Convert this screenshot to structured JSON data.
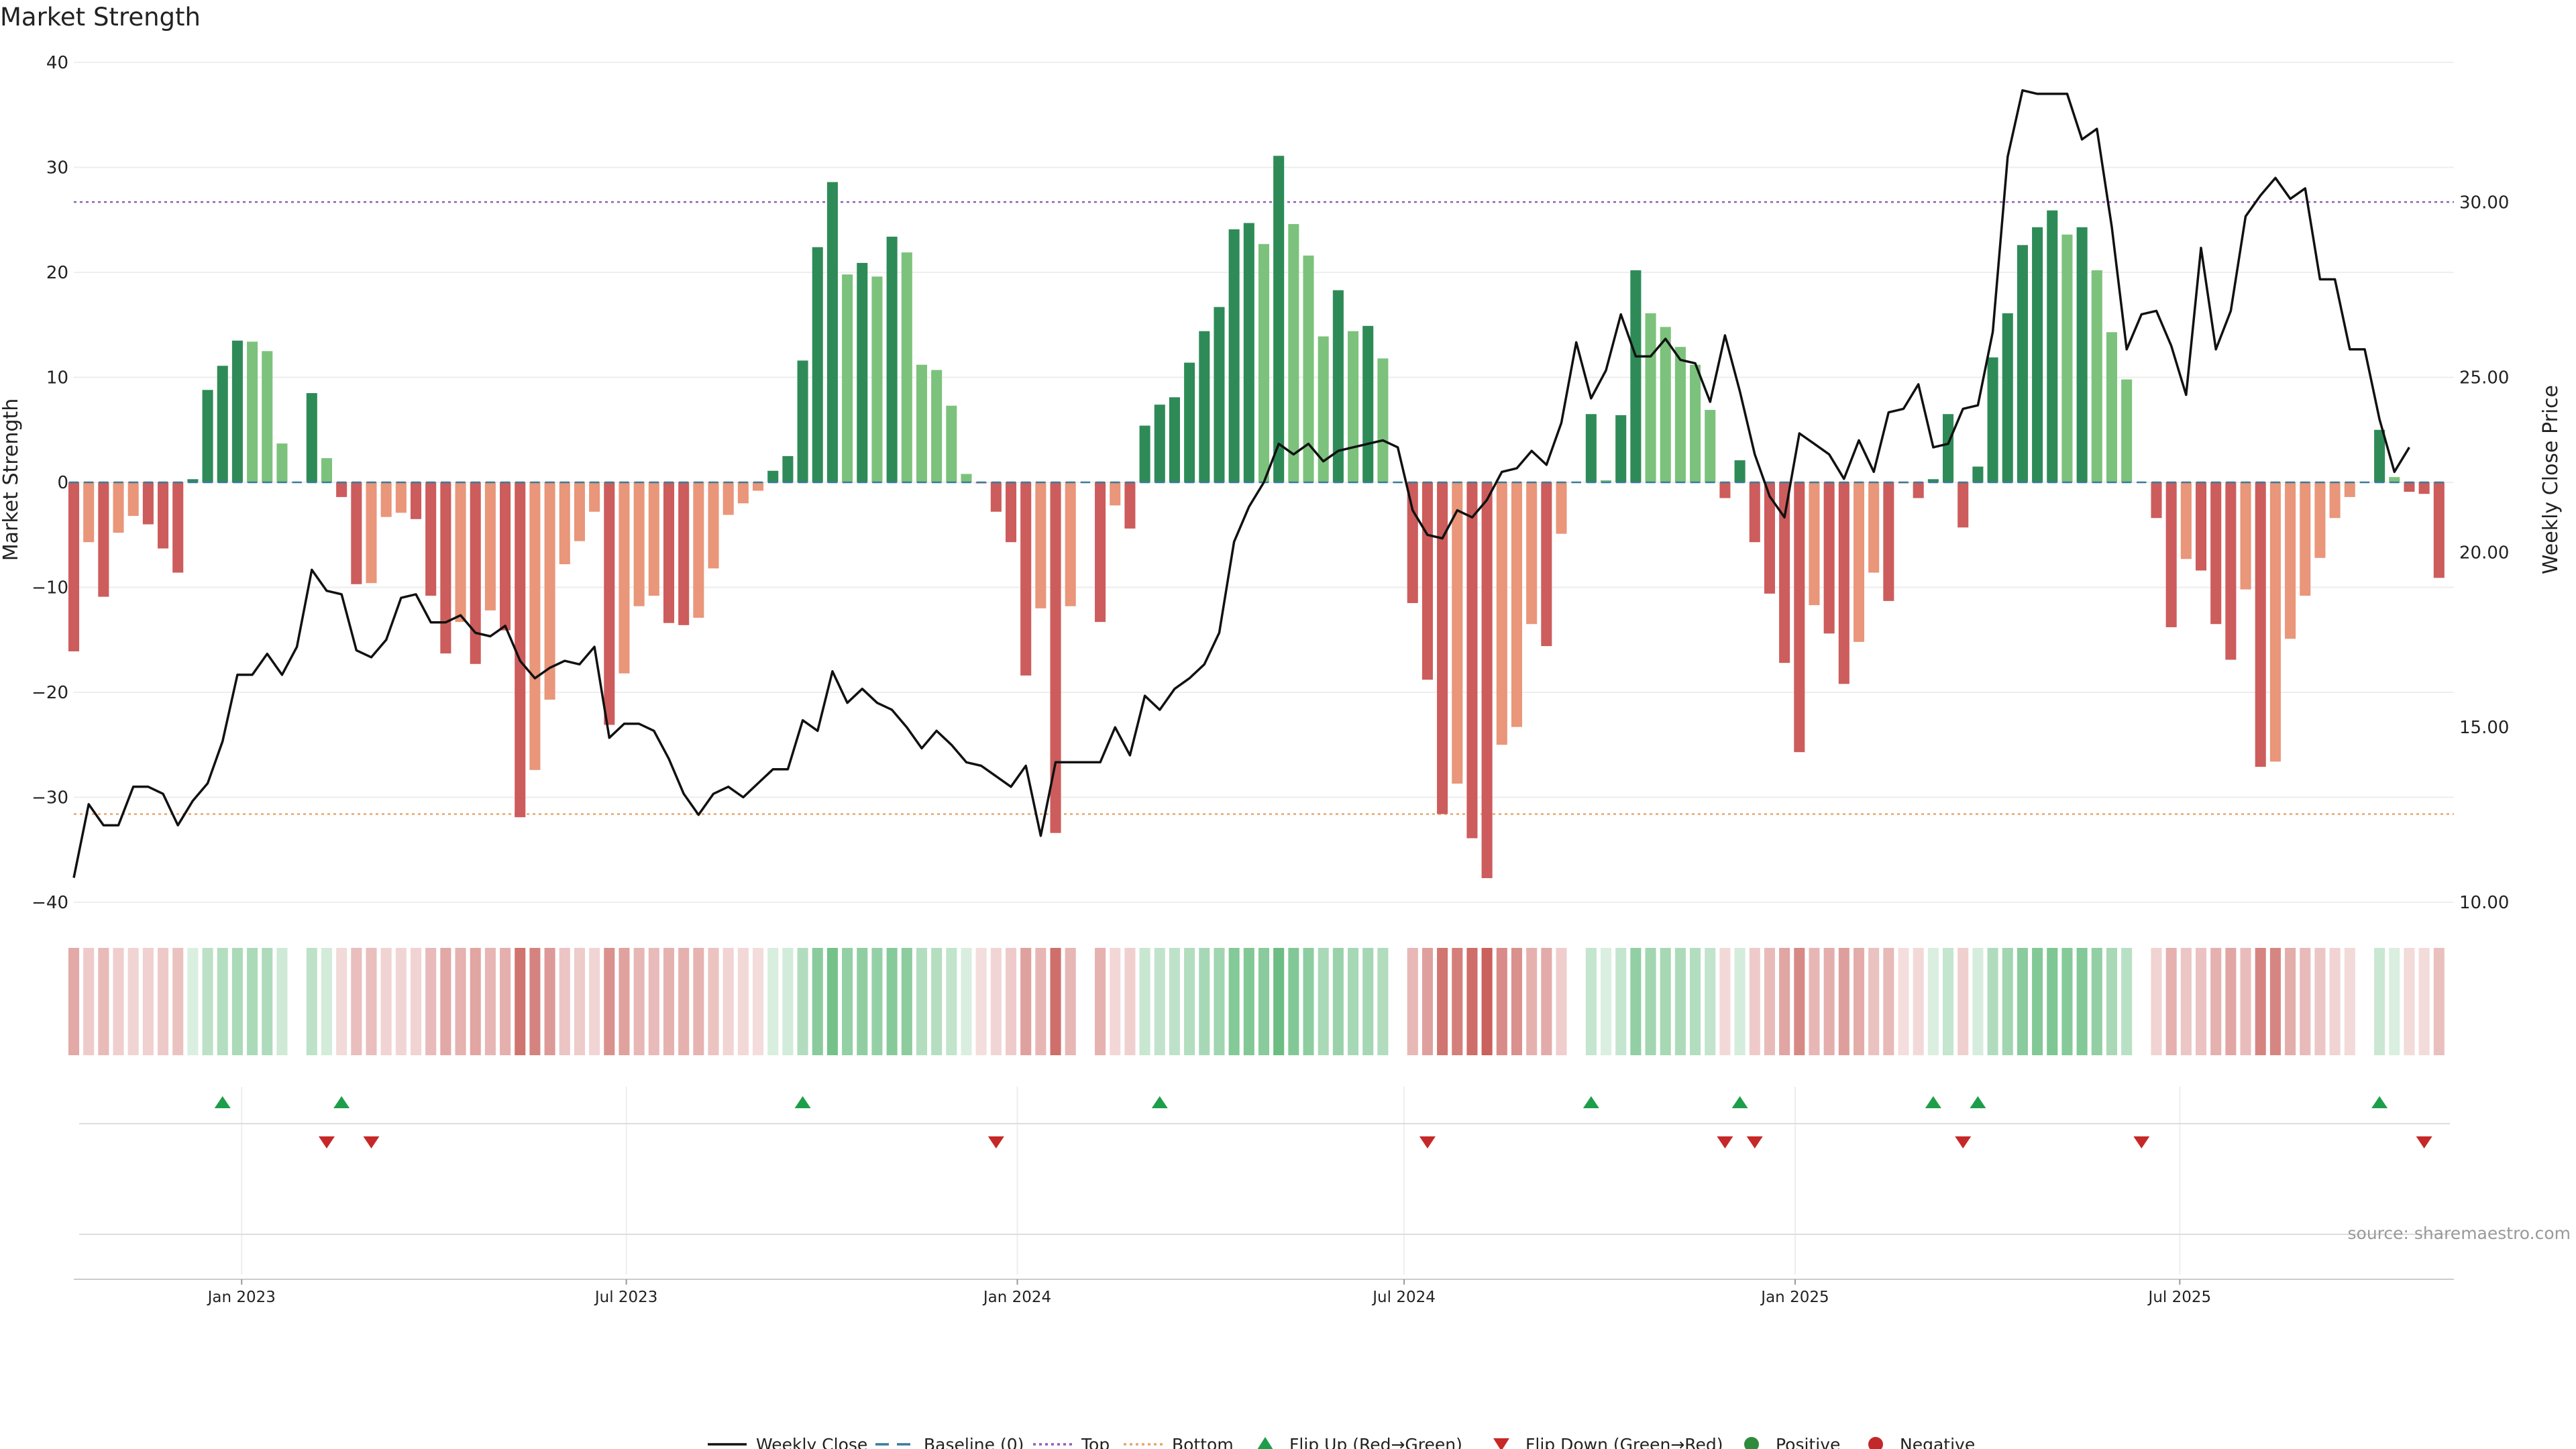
{
  "chart_data": {
    "type": "bar",
    "title": "Market Strength",
    "ylabel_left": "Market Strength",
    "ylabel_right": "Weekly Close Price",
    "ylim_left": [
      -40,
      40
    ],
    "ylim_right": [
      10,
      34
    ],
    "yticks_left": [
      "40",
      "30",
      "20",
      "10",
      "0",
      "−10",
      "−20",
      "−30",
      "−40"
    ],
    "yticks_right": [
      "30.00",
      "25.00",
      "20.00",
      "15.00",
      "10.00"
    ],
    "top_threshold": 26.7,
    "bottom_threshold": -31.6,
    "x_start": "2022-10-14",
    "x_end": "2025-11-07",
    "x_ticks": [
      {
        "date": "2023-01-01",
        "label": "Jan 2023"
      },
      {
        "date": "2023-07-01",
        "label": "Jul 2023"
      },
      {
        "date": "2024-01-01",
        "label": "Jan 2024"
      },
      {
        "date": "2024-07-01",
        "label": "Jul 2024"
      },
      {
        "date": "2025-01-01",
        "label": "Jan 2025"
      },
      {
        "date": "2025-07-01",
        "label": "Jul 2025"
      }
    ],
    "strength": [
      -16.1,
      -5.7,
      -10.9,
      -4.8,
      -3.2,
      -4.0,
      -6.3,
      -8.6,
      0.3,
      8.8,
      11.1,
      13.5,
      13.4,
      12.5,
      3.7,
      0.0,
      8.5,
      2.3,
      -1.4,
      -9.7,
      -9.6,
      -3.3,
      -2.9,
      -3.5,
      -10.8,
      -16.3,
      -13.3,
      -17.3,
      -12.2,
      -14.1,
      -31.9,
      -27.4,
      -20.7,
      -7.8,
      -5.6,
      -2.8,
      -23.1,
      -18.2,
      -11.8,
      -10.8,
      -13.4,
      -13.6,
      -12.9,
      -8.2,
      -3.1,
      -2.0,
      -0.8,
      1.1,
      2.5,
      11.6,
      22.4,
      28.6,
      19.8,
      20.9,
      19.6,
      23.4,
      21.9,
      11.2,
      10.7,
      7.3,
      0.8,
      -0.1,
      -2.8,
      -5.7,
      -18.4,
      -12.0,
      -33.4,
      -11.8,
      0.0,
      -13.3,
      -2.2,
      -4.4,
      5.4,
      7.4,
      8.1,
      11.4,
      14.4,
      16.7,
      24.1,
      24.7,
      22.7,
      31.1,
      24.6,
      21.6,
      13.9,
      18.3,
      14.4,
      14.9,
      11.8,
      0.0,
      -11.5,
      -18.8,
      -31.6,
      -28.7,
      -33.9,
      -37.7,
      -25.0,
      -23.3,
      -13.5,
      -15.6,
      -4.9,
      0.0,
      6.5,
      0.2,
      6.4,
      20.2,
      16.1,
      14.8,
      12.9,
      11.2,
      6.9,
      -1.5,
      2.1,
      -5.7,
      -10.6,
      -17.2,
      -25.7,
      -11.7,
      -14.4,
      -19.2,
      -15.2,
      -8.6,
      -11.3,
      -0.1,
      -1.5,
      0.3,
      6.5,
      -4.3,
      1.5,
      11.9,
      16.1,
      22.6,
      24.3,
      25.9,
      23.6,
      24.3,
      20.2,
      14.3,
      9.8,
      0.0,
      -3.4,
      -13.8,
      -7.3,
      -8.4,
      -13.5,
      -16.9,
      -10.2,
      -27.1,
      -26.6,
      -14.9,
      -10.8,
      -7.2,
      -3.4,
      -1.4,
      0.0,
      5.0,
      0.5,
      -0.9,
      -1.1,
      -9.1
    ],
    "close": [
      10.7,
      12.8,
      12.2,
      12.2,
      13.3,
      13.3,
      13.1,
      12.2,
      12.9,
      13.4,
      14.6,
      16.5,
      16.5,
      17.1,
      16.5,
      17.3,
      19.5,
      18.9,
      18.8,
      17.2,
      17.0,
      17.5,
      18.7,
      18.8,
      18.0,
      18.0,
      18.2,
      17.7,
      17.6,
      17.9,
      16.9,
      16.4,
      16.7,
      16.9,
      16.8,
      17.3,
      14.7,
      15.1,
      15.1,
      14.9,
      14.1,
      13.1,
      12.5,
      13.1,
      13.3,
      13.0,
      13.4,
      13.8,
      13.8,
      15.2,
      14.9,
      16.6,
      15.7,
      16.1,
      15.7,
      15.5,
      15.0,
      14.4,
      14.9,
      14.5,
      14.0,
      13.9,
      13.6,
      13.3,
      13.9,
      11.9,
      14.0,
      14.0,
      14.0,
      14.0,
      15.0,
      14.2,
      15.9,
      15.5,
      16.1,
      16.4,
      16.8,
      17.7,
      20.3,
      21.3,
      22.0,
      23.1,
      22.8,
      23.1,
      22.6,
      22.9,
      23.0,
      23.1,
      23.2,
      23.0,
      21.2,
      20.5,
      20.4,
      21.2,
      21.0,
      21.5,
      22.3,
      22.4,
      22.9,
      22.5,
      23.7,
      26.0,
      24.4,
      25.2,
      26.8,
      25.6,
      25.6,
      26.1,
      25.5,
      25.4,
      24.3,
      26.2,
      24.6,
      22.8,
      21.6,
      21.0,
      23.4,
      23.1,
      22.8,
      22.1,
      23.2,
      22.3,
      24.0,
      24.1,
      24.8,
      23.0,
      23.1,
      24.1,
      24.2,
      26.3,
      31.3,
      33.2,
      33.1,
      33.1,
      33.1,
      31.8,
      32.1,
      29.3,
      25.8,
      26.8,
      26.9,
      25.9,
      24.5,
      28.7,
      25.8,
      26.9,
      29.6,
      30.2,
      30.7,
      30.1,
      30.4,
      27.8,
      27.8,
      25.8,
      25.8,
      23.8,
      22.3,
      23.0
    ],
    "flips_up": [
      "2022-12-23",
      "2023-02-17",
      "2023-09-22",
      "2024-03-08",
      "2024-09-27",
      "2024-12-06",
      "2025-03-07",
      "2025-03-28",
      "2025-10-03"
    ],
    "flips_down": [
      "2023-02-10",
      "2023-03-03",
      "2023-12-22",
      "2024-07-12",
      "2024-11-29",
      "2024-12-13",
      "2025-03-21",
      "2025-06-13",
      "2025-10-24"
    ],
    "source": "source: sharemaestro.com",
    "legend": [
      {
        "label": "Weekly Close",
        "kind": "line-solid",
        "color": "#111111"
      },
      {
        "label": "Baseline (0)",
        "kind": "line-dashed",
        "color": "#3a7a9c"
      },
      {
        "label": "Top",
        "kind": "line-dotted",
        "color": "#8e5fb5"
      },
      {
        "label": "Bottom",
        "kind": "line-dotted",
        "color": "#e8a56c"
      },
      {
        "label": "Flip Up (Red→Green)",
        "kind": "triangle-up",
        "color": "#1e9e4a"
      },
      {
        "label": "Flip Down (Green→Red)",
        "kind": "triangle-down",
        "color": "#c62828"
      },
      {
        "label": "Positive",
        "kind": "dot",
        "color": "#2e8b3c"
      },
      {
        "label": "Negative",
        "kind": "dot",
        "color": "#c0282a"
      }
    ],
    "colors": {
      "pos_strong": "#2e8b57",
      "pos_light": "#7cc27c",
      "neg_strong": "#cd5c5c",
      "neg_light": "#e9967a",
      "top_line": "#8e5fb5",
      "bottom_line": "#e8a56c",
      "baseline": "#3a7a9c",
      "close_line": "#111111",
      "flip_up": "#1e9e4a",
      "flip_down": "#c62828"
    }
  }
}
